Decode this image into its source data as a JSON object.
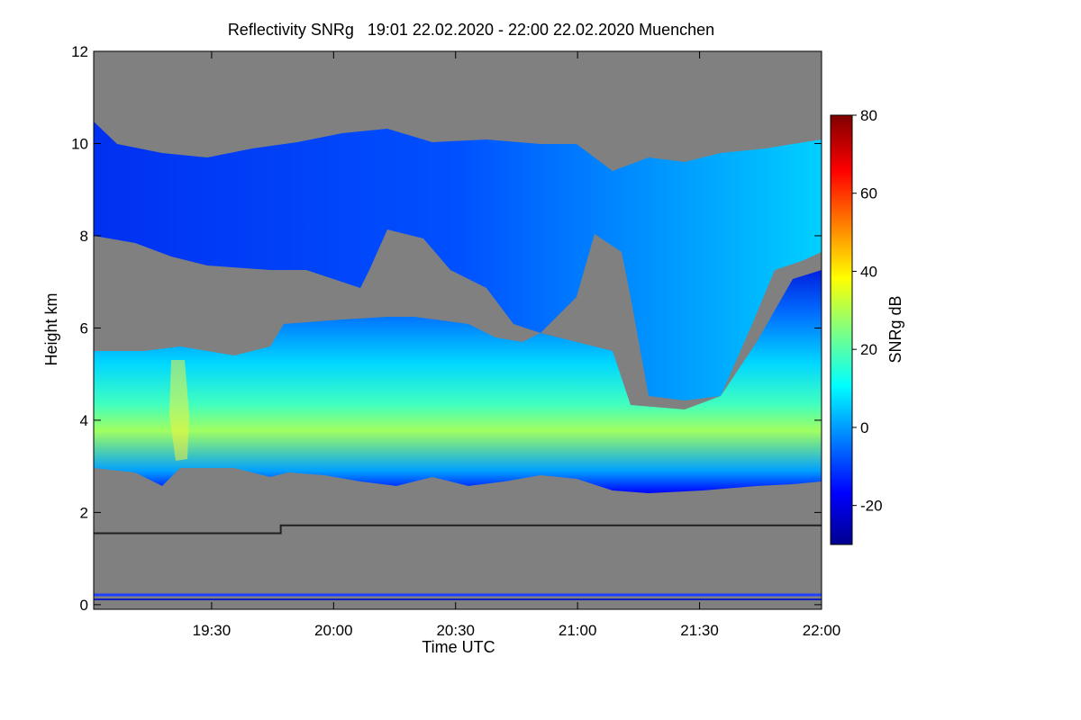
{
  "chart_data": {
    "type": "heatmap",
    "title": "Reflectivity SNRg   19:01 22.02.2020 - 22:00 22.02.2020 Muenchen",
    "xlabel": "Time UTC",
    "ylabel": "Height km",
    "x_tick_labels": [
      "19:30",
      "20:00",
      "20:30",
      "21:00",
      "21:30",
      "22:00"
    ],
    "x_tick_minutes": [
      1170,
      1200,
      1230,
      1260,
      1290,
      1320
    ],
    "xlim_minutes": [
      1141,
      1320
    ],
    "y_tick_labels": [
      "0",
      "2",
      "4",
      "6",
      "8",
      "10",
      "12"
    ],
    "y_tick_values": [
      0,
      2,
      4,
      6,
      8,
      10,
      12
    ],
    "ylim": [
      -0.1,
      12
    ],
    "colorbar": {
      "label": "SNRg dB",
      "range": [
        -30,
        80
      ],
      "tick_labels": [
        "-20",
        "0",
        "20",
        "40",
        "60",
        "80"
      ],
      "tick_values": [
        -20,
        0,
        20,
        40,
        60,
        80
      ]
    },
    "no_data_color": "#808080",
    "background_line": {
      "description_values": [
        [
          1141,
          1.55
        ],
        [
          1187,
          1.55
        ],
        [
          1187,
          1.72
        ],
        [
          1320,
          1.72
        ]
      ]
    },
    "layers": [
      {
        "name": "upper cloud",
        "height_range_km": [
          6.5,
          10.0
        ],
        "snr_range_db": [
          -20,
          10
        ]
      },
      {
        "name": "lower cloud",
        "height_range_km": [
          2.5,
          6.5
        ],
        "snr_range_db": [
          -10,
          40
        ]
      }
    ]
  }
}
